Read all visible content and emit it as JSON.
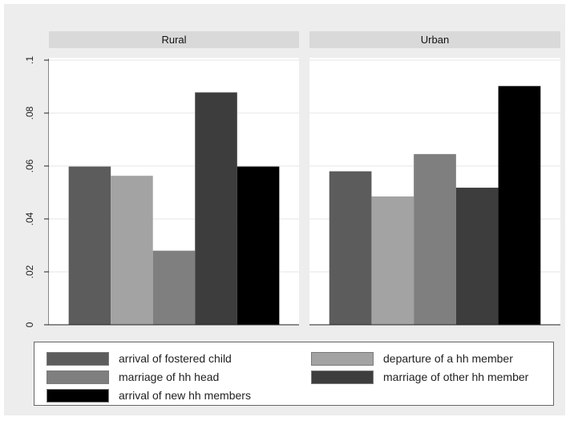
{
  "chart_data": {
    "type": "bar",
    "panels": [
      {
        "title": "Rural",
        "values": [
          0.0598,
          0.0563,
          0.028,
          0.0878,
          0.0598
        ]
      },
      {
        "title": "Urban",
        "values": [
          0.058,
          0.0485,
          0.0645,
          0.0518,
          0.0902
        ]
      }
    ],
    "series": [
      {
        "name": "arrival of fostered child",
        "color": "#5c5c5c"
      },
      {
        "name": "departure of a hh member",
        "color": "#a3a3a3"
      },
      {
        "name": "marriage of hh head",
        "color": "#7f7f7f"
      },
      {
        "name": "marriage of other hh member",
        "color": "#3d3d3d"
      },
      {
        "name": "arrival of new hh members",
        "color": "#000000"
      }
    ],
    "y_ticks": [
      0,
      0.02,
      0.04,
      0.06,
      0.08,
      0.1
    ],
    "y_tick_labels": [
      "0",
      ".02",
      ".04",
      ".06",
      ".08",
      ".1"
    ],
    "ylim": [
      0,
      0.1
    ],
    "grid": true,
    "legend_position": "bottom"
  }
}
